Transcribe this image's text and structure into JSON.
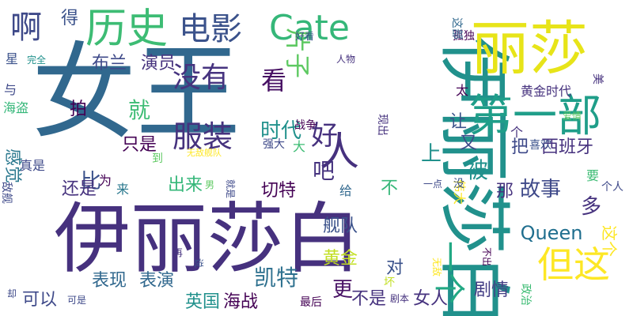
{
  "words": [
    {
      "text": "女王",
      "color": "#31688e"
    },
    {
      "text": "伊丽莎白",
      "color": "#46317e"
    },
    {
      "text": "伊丽莎白",
      "color": "#21918c"
    },
    {
      "text": "丽莎",
      "color": "#e7e419"
    },
    {
      "text": "第一部",
      "color": "#1f9e89"
    },
    {
      "text": "历史",
      "color": "#3dbc74"
    },
    {
      "text": "电影",
      "color": "#3b528b"
    },
    {
      "text": "Cate",
      "color": "#35b779"
    },
    {
      "text": "啊",
      "color": "#3e4989"
    },
    {
      "text": "得",
      "color": "#3b528b"
    },
    {
      "text": "布兰",
      "color": "#3e4989"
    },
    {
      "text": "演员",
      "color": "#46327e"
    },
    {
      "text": "没有",
      "color": "#46337f"
    },
    {
      "text": "看",
      "color": "#471063"
    },
    {
      "text": "片子",
      "color": "#5ec962"
    },
    {
      "text": "人",
      "color": "#46317e"
    },
    {
      "text": "就",
      "color": "#3dbc74"
    },
    {
      "text": "拍",
      "color": "#440154"
    },
    {
      "text": "服装",
      "color": "#46327e"
    },
    {
      "text": "好",
      "color": "#46317e"
    },
    {
      "text": "时代",
      "color": "#21918c"
    },
    {
      "text": "吧",
      "color": "#46337f"
    },
    {
      "text": "比",
      "color": "#3b528b"
    },
    {
      "text": "但这",
      "color": "#fde725"
    },
    {
      "text": "西班牙",
      "color": "#46317e"
    },
    {
      "text": "被",
      "color": "#21918c"
    },
    {
      "text": "故事",
      "color": "#3e4989"
    },
    {
      "text": "那",
      "color": "#46327e"
    },
    {
      "text": "Queen",
      "color": "#1f6e8e"
    },
    {
      "text": "一个",
      "color": "#22a884"
    },
    {
      "text": "上",
      "color": "#21918c"
    },
    {
      "text": "切特",
      "color": "#440154"
    },
    {
      "text": "舰队",
      "color": "#3b528b"
    },
    {
      "text": "黄金",
      "color": "#c2df23"
    },
    {
      "text": "凯特",
      "color": "#2d708e"
    },
    {
      "text": "表现",
      "color": "#31688e"
    },
    {
      "text": "表演",
      "color": "#31688e"
    },
    {
      "text": "可以",
      "color": "#3e4989"
    },
    {
      "text": "英国",
      "color": "#21918c"
    },
    {
      "text": "海战",
      "color": "#440154"
    },
    {
      "text": "女人",
      "color": "#46327e"
    },
    {
      "text": "剧情",
      "color": "#433e85"
    },
    {
      "text": "不是",
      "color": "#46327e"
    },
    {
      "text": "更",
      "color": "#471164"
    },
    {
      "text": "对",
      "color": "#3b528b"
    },
    {
      "text": "还是",
      "color": "#46327e"
    },
    {
      "text": "为",
      "color": "#440154"
    },
    {
      "text": "只是",
      "color": "#440154"
    },
    {
      "text": "出来",
      "color": "#35b779"
    },
    {
      "text": "感觉",
      "color": "#2a788e"
    },
    {
      "text": "真是",
      "color": "#3e4989"
    },
    {
      "text": "与",
      "color": "#3e4989"
    },
    {
      "text": "海盗",
      "color": "#35b779"
    },
    {
      "text": "星",
      "color": "#3b528b"
    },
    {
      "text": "完全",
      "color": "#21918c"
    },
    {
      "text": "人物",
      "color": "#46327e"
    },
    {
      "text": "好看",
      "color": "#3b528b"
    },
    {
      "text": "孤独",
      "color": "#440154"
    },
    {
      "text": "这部",
      "color": "#31688e"
    },
    {
      "text": "黄金时代",
      "color": "#46327e"
    },
    {
      "text": "太",
      "color": "#440154"
    },
    {
      "text": "爱情",
      "color": "#5ec962"
    },
    {
      "text": "美",
      "color": "#46327e"
    },
    {
      "text": "喜欢",
      "color": "#3b528b"
    },
    {
      "text": "又",
      "color": "#3e4989"
    },
    {
      "text": "个",
      "color": "#46327e"
    },
    {
      "text": "要",
      "color": "#3dbc74"
    },
    {
      "text": "个人",
      "color": "#3e4989"
    },
    {
      "text": "多",
      "color": "#46327e"
    },
    {
      "text": "这个",
      "color": "#fde725"
    },
    {
      "text": "伟大",
      "color": "#fde725"
    },
    {
      "text": "把",
      "color": "#3e4989"
    },
    {
      "text": "让",
      "color": "#3b528b"
    },
    {
      "text": "一点",
      "color": "#3e4989"
    },
    {
      "text": "没",
      "color": "#3b528b"
    },
    {
      "text": "不出",
      "color": "#440154"
    },
    {
      "text": "政治",
      "color": "#3dbc74"
    },
    {
      "text": "现出",
      "color": "#46327e"
    },
    {
      "text": "战争",
      "color": "#440154"
    },
    {
      "text": "强大",
      "color": "#3e4989"
    },
    {
      "text": "大",
      "color": "#3dbc74"
    },
    {
      "text": "给",
      "color": "#31688e"
    },
    {
      "text": "不",
      "color": "#35b779"
    },
    {
      "text": "无敌舰队",
      "color": "#fde725"
    },
    {
      "text": "到",
      "color": "#5ec962"
    },
    {
      "text": "来",
      "color": "#2a788e"
    },
    {
      "text": "男",
      "color": "#5ec962"
    },
    {
      "text": "就是",
      "color": "#3e4989"
    },
    {
      "text": "再",
      "color": "#46327e"
    },
    {
      "text": "说",
      "color": "#3b528b"
    },
    {
      "text": "可是",
      "color": "#3e4989"
    },
    {
      "text": "最后",
      "color": "#440154"
    },
    {
      "text": "剧本",
      "color": "#46327e"
    },
    {
      "text": "坏",
      "color": "#c2df23"
    },
    {
      "text": "无敌",
      "color": "#fde725"
    },
    {
      "text": "敌舰",
      "color": "#3e4989"
    },
    {
      "text": "却",
      "color": "#3e4989"
    }
  ]
}
